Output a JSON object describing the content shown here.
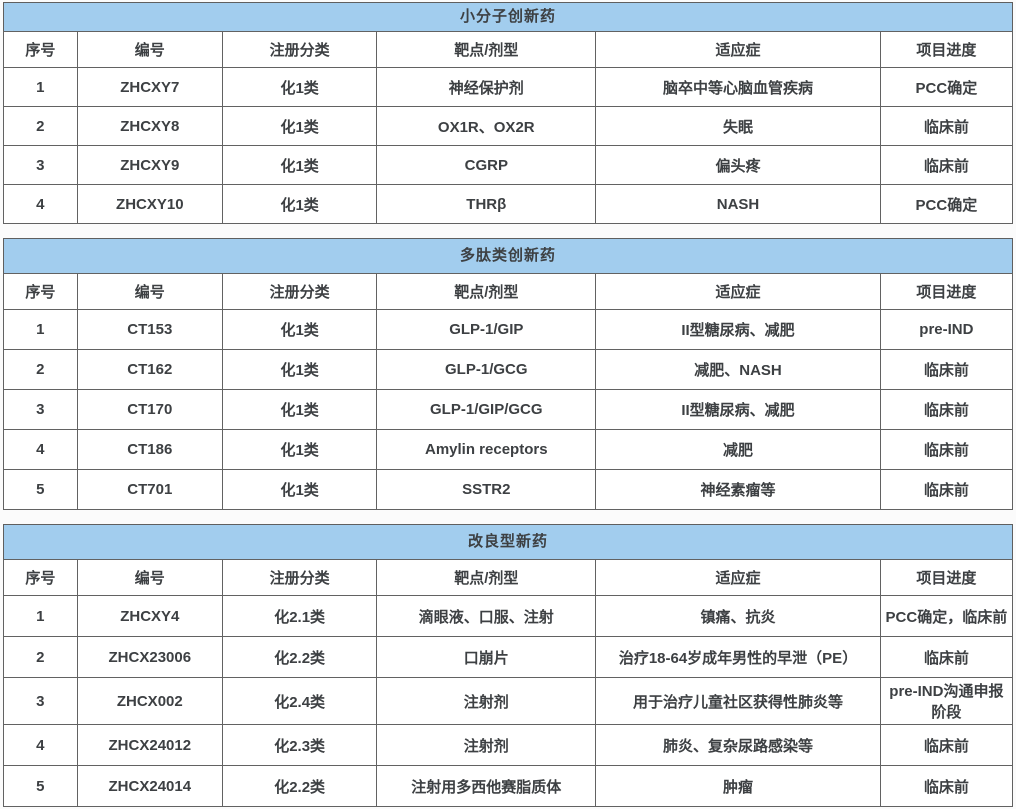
{
  "colors": {
    "title_bar_bg": "#a2cdee",
    "text": "#3d4043",
    "border": "#626262",
    "cell_bg": "#ffffff",
    "page_bg": "#fbfbfb"
  },
  "columns": [
    "序号",
    "编号",
    "注册分类",
    "靶点/剂型",
    "适应症",
    "项目进度"
  ],
  "tables": [
    {
      "title": "小分子创新药",
      "rows": [
        [
          "1",
          "ZHCXY7",
          "化1类",
          "神经保护剂",
          "脑卒中等心脑血管疾病",
          "PCC确定"
        ],
        [
          "2",
          "ZHCXY8",
          "化1类",
          "OX1R、OX2R",
          "失眠",
          "临床前"
        ],
        [
          "3",
          "ZHCXY9",
          "化1类",
          "CGRP",
          "偏头疼",
          "临床前"
        ],
        [
          "4",
          "ZHCXY10",
          "化1类",
          "THRβ",
          "NASH",
          "PCC确定"
        ]
      ]
    },
    {
      "title": "多肽类创新药",
      "rows": [
        [
          "1",
          "CT153",
          "化1类",
          "GLP-1/GIP",
          "II型糖尿病、减肥",
          "pre-IND"
        ],
        [
          "2",
          "CT162",
          "化1类",
          "GLP-1/GCG",
          "减肥、NASH",
          "临床前"
        ],
        [
          "3",
          "CT170",
          "化1类",
          "GLP-1/GIP/GCG",
          "II型糖尿病、减肥",
          "临床前"
        ],
        [
          "4",
          "CT186",
          "化1类",
          "Amylin receptors",
          "减肥",
          "临床前"
        ],
        [
          "5",
          "CT701",
          "化1类",
          "SSTR2",
          "神经素瘤等",
          "临床前"
        ]
      ]
    },
    {
      "title": "改良型新药",
      "rows": [
        [
          "1",
          "ZHCXY4",
          "化2.1类",
          "滴眼液、口服、注射",
          "镇痛、抗炎",
          "PCC确定，临床前"
        ],
        [
          "2",
          "ZHCX23006",
          "化2.2类",
          "口崩片",
          "治疗18-64岁成年男性的早泄（PE）",
          "临床前"
        ],
        [
          "3",
          "ZHCX002",
          "化2.4类",
          "注射剂",
          "用于治疗儿童社区获得性肺炎等",
          "pre-IND沟通申报阶段"
        ],
        [
          "4",
          "ZHCX24012",
          "化2.3类",
          "注射剂",
          "肺炎、复杂尿路感染等",
          "临床前"
        ],
        [
          "5",
          "ZHCX24014",
          "化2.2类",
          "注射用多西他赛脂质体",
          "肿瘤",
          "临床前"
        ]
      ]
    }
  ]
}
